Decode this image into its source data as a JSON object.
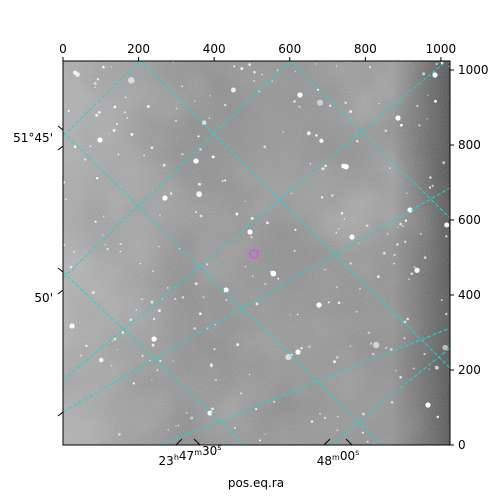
{
  "chart_data": {
    "type": "image",
    "xlabel": "pos.eq.ra",
    "ylabel": "",
    "pixel_axes": {
      "top": {
        "range": [
          0,
          1024
        ],
        "ticks": [
          0,
          200,
          400,
          600,
          800,
          1000
        ]
      },
      "right": {
        "range": [
          0,
          1024
        ],
        "ticks": [
          0,
          200,
          400,
          600,
          800,
          1000
        ]
      }
    },
    "world_axes": {
      "bottom": {
        "label": "pos.eq.ra",
        "ticks": [
          {
            "main": "23",
            "sup1": "h",
            "mid": "47",
            "sup2": "m",
            "end": "30",
            "sup3": "s"
          },
          {
            "main": "48",
            "sup1": "m",
            "mid": "00",
            "sup2": "s"
          }
        ]
      },
      "left": {
        "ticks": [
          "51°45'",
          "50'"
        ]
      }
    },
    "grid": true,
    "grid_color": "#22d3d3",
    "marker_color": "#d060d0",
    "image_colormap": "gray"
  }
}
